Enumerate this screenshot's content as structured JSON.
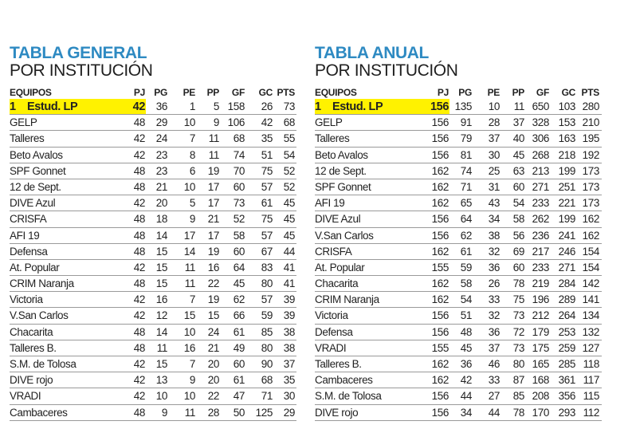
{
  "columns": [
    "EQUIPOS",
    "PJ",
    "PG",
    "PE",
    "PP",
    "GF",
    "GC",
    "PTS"
  ],
  "highlight_color": "#fff200",
  "title_color": "#2e8ac2",
  "tables": [
    {
      "title": "TABLA GENERAL",
      "subtitle": "POR INSTITUCIÓN",
      "rows": [
        {
          "rank": "1",
          "team": "Estud. LP",
          "pj": "42",
          "pg": "36",
          "pe": "1",
          "pp": "5",
          "gf": "158",
          "gc": "26",
          "pts": "73"
        },
        {
          "team": "GELP",
          "pj": "48",
          "pg": "29",
          "pe": "10",
          "pp": "9",
          "gf": "106",
          "gc": "42",
          "pts": "68"
        },
        {
          "team": "Talleres",
          "pj": "42",
          "pg": "24",
          "pe": "7",
          "pp": "11",
          "gf": "68",
          "gc": "35",
          "pts": "55"
        },
        {
          "team": "Beto Avalos",
          "pj": "42",
          "pg": "23",
          "pe": "8",
          "pp": "11",
          "gf": "74",
          "gc": "51",
          "pts": "54"
        },
        {
          "team": "SPF Gonnet",
          "pj": "48",
          "pg": "23",
          "pe": "6",
          "pp": "19",
          "gf": "70",
          "gc": "75",
          "pts": "52"
        },
        {
          "team": "12 de Sept.",
          "pj": "48",
          "pg": "21",
          "pe": "10",
          "pp": "17",
          "gf": "60",
          "gc": "57",
          "pts": "52"
        },
        {
          "team": "DIVE Azul",
          "pj": "42",
          "pg": "20",
          "pe": "5",
          "pp": "17",
          "gf": "73",
          "gc": "61",
          "pts": "45"
        },
        {
          "team": "CRISFA",
          "pj": "48",
          "pg": "18",
          "pe": "9",
          "pp": "21",
          "gf": "52",
          "gc": "75",
          "pts": "45"
        },
        {
          "team": "AFI 19",
          "pj": "48",
          "pg": "14",
          "pe": "17",
          "pp": "17",
          "gf": "58",
          "gc": "57",
          "pts": "45"
        },
        {
          "team": "Defensa",
          "pj": "48",
          "pg": "15",
          "pe": "14",
          "pp": "19",
          "gf": "60",
          "gc": "67",
          "pts": "44"
        },
        {
          "team": "At. Popular",
          "pj": "42",
          "pg": "15",
          "pe": "11",
          "pp": "16",
          "gf": "64",
          "gc": "83",
          "pts": "41"
        },
        {
          "team": "CRIM Naranja",
          "pj": "48",
          "pg": "15",
          "pe": "11",
          "pp": "22",
          "gf": "45",
          "gc": "80",
          "pts": "41"
        },
        {
          "team": "Victoria",
          "pj": "42",
          "pg": "16",
          "pe": "7",
          "pp": "19",
          "gf": "62",
          "gc": "57",
          "pts": "39"
        },
        {
          "team": "V.San Carlos",
          "pj": "42",
          "pg": "12",
          "pe": "15",
          "pp": "15",
          "gf": "66",
          "gc": "59",
          "pts": "39"
        },
        {
          "team": "Chacarita",
          "pj": "48",
          "pg": "14",
          "pe": "10",
          "pp": "24",
          "gf": "61",
          "gc": "85",
          "pts": "38"
        },
        {
          "team": "Talleres B.",
          "pj": "48",
          "pg": "11",
          "pe": "16",
          "pp": "21",
          "gf": "49",
          "gc": "80",
          "pts": "38"
        },
        {
          "team": "S.M. de Tolosa",
          "pj": "42",
          "pg": "15",
          "pe": "7",
          "pp": "20",
          "gf": "60",
          "gc": "90",
          "pts": "37"
        },
        {
          "team": "DIVE rojo",
          "pj": "42",
          "pg": "13",
          "pe": "9",
          "pp": "20",
          "gf": "61",
          "gc": "68",
          "pts": "35"
        },
        {
          "team": "VRADI",
          "pj": "42",
          "pg": "10",
          "pe": "10",
          "pp": "22",
          "gf": "47",
          "gc": "71",
          "pts": "30"
        },
        {
          "team": "Cambaceres",
          "pj": "48",
          "pg": "9",
          "pe": "11",
          "pp": "28",
          "gf": "50",
          "gc": "125",
          "pts": "29"
        }
      ]
    },
    {
      "title": "TABLA ANUAL",
      "subtitle": "POR INSTITUCIÓN",
      "rows": [
        {
          "rank": "1",
          "team": "Estud. LP",
          "pj": "156",
          "pg": "135",
          "pe": "10",
          "pp": "11",
          "gf": "650",
          "gc": "103",
          "pts": "280"
        },
        {
          "team": "GELP",
          "pj": "156",
          "pg": "91",
          "pe": "28",
          "pp": "37",
          "gf": "328",
          "gc": "153",
          "pts": "210"
        },
        {
          "team": "Talleres",
          "pj": "156",
          "pg": "79",
          "pe": "37",
          "pp": "40",
          "gf": "306",
          "gc": "163",
          "pts": "195"
        },
        {
          "team": "Beto Avalos",
          "pj": "156",
          "pg": "81",
          "pe": "30",
          "pp": "45",
          "gf": "268",
          "gc": "218",
          "pts": "192"
        },
        {
          "team": "12 de Sept.",
          "pj": "162",
          "pg": "74",
          "pe": "25",
          "pp": "63",
          "gf": "213",
          "gc": "199",
          "pts": "173"
        },
        {
          "team": "SPF Gonnet",
          "pj": "162",
          "pg": "71",
          "pe": "31",
          "pp": "60",
          "gf": "271",
          "gc": "251",
          "pts": "173"
        },
        {
          "team": "AFI 19",
          "pj": "162",
          "pg": "65",
          "pe": "43",
          "pp": "54",
          "gf": "233",
          "gc": "221",
          "pts": "173"
        },
        {
          "team": "DIVE Azul",
          "pj": "156",
          "pg": "64",
          "pe": "34",
          "pp": "58",
          "gf": "262",
          "gc": "199",
          "pts": "162"
        },
        {
          "team": "V.San Carlos",
          "pj": "156",
          "pg": "62",
          "pe": "38",
          "pp": "56",
          "gf": "236",
          "gc": "241",
          "pts": "162"
        },
        {
          "team": "CRISFA",
          "pj": "162",
          "pg": "61",
          "pe": "32",
          "pp": "69",
          "gf": "217",
          "gc": "246",
          "pts": "154"
        },
        {
          "team": "At. Popular",
          "pj": "155",
          "pg": "59",
          "pe": "36",
          "pp": "60",
          "gf": "233",
          "gc": "271",
          "pts": "154"
        },
        {
          "team": "Chacarita",
          "pj": "162",
          "pg": "58",
          "pe": "26",
          "pp": "78",
          "gf": "219",
          "gc": "284",
          "pts": "142"
        },
        {
          "team": "CRIM Naranja",
          "pj": "162",
          "pg": "54",
          "pe": "33",
          "pp": "75",
          "gf": "196",
          "gc": "289",
          "pts": "141"
        },
        {
          "team": "Victoria",
          "pj": "156",
          "pg": "51",
          "pe": "32",
          "pp": "73",
          "gf": "212",
          "gc": "264",
          "pts": "134"
        },
        {
          "team": "Defensa",
          "pj": "156",
          "pg": "48",
          "pe": "36",
          "pp": "72",
          "gf": "179",
          "gc": "253",
          "pts": "132"
        },
        {
          "team": "VRADI",
          "pj": "155",
          "pg": "45",
          "pe": "37",
          "pp": "73",
          "gf": "175",
          "gc": "259",
          "pts": "127"
        },
        {
          "team": "Talleres B.",
          "pj": "162",
          "pg": "36",
          "pe": "46",
          "pp": "80",
          "gf": "165",
          "gc": "285",
          "pts": "118"
        },
        {
          "team": "Cambaceres",
          "pj": "162",
          "pg": "42",
          "pe": "33",
          "pp": "87",
          "gf": "168",
          "gc": "361",
          "pts": "117"
        },
        {
          "team": "S.M. de Tolosa",
          "pj": "156",
          "pg": "44",
          "pe": "27",
          "pp": "85",
          "gf": "208",
          "gc": "356",
          "pts": "115"
        },
        {
          "team": "DIVE rojo",
          "pj": "156",
          "pg": "34",
          "pe": "44",
          "pp": "78",
          "gf": "170",
          "gc": "293",
          "pts": "112"
        }
      ]
    }
  ]
}
